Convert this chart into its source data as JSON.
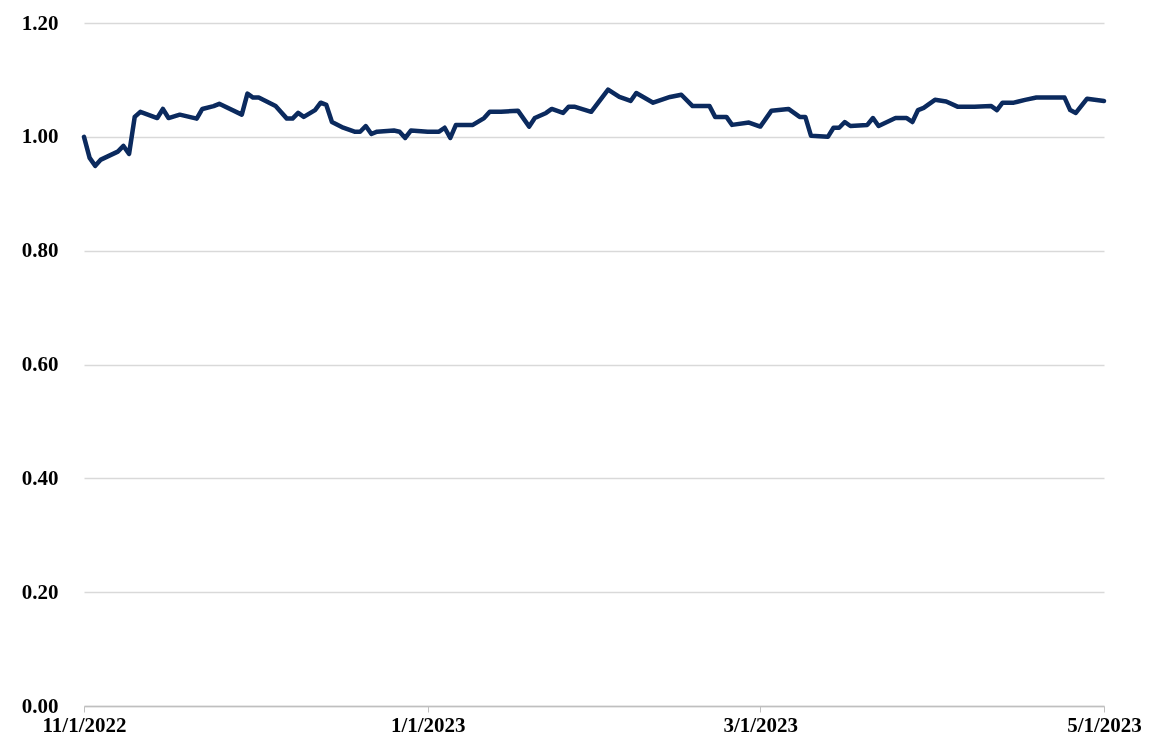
{
  "chart_data": {
    "type": "line",
    "color": "#0b2a5e",
    "grid": "y",
    "marker": "none",
    "line_style": "solid",
    "xlim": [
      "2022-11-01",
      "2023-05-01"
    ],
    "xticks": [
      {
        "value": "2022-11-01",
        "label": "11/1/2022"
      },
      {
        "value": "2023-01-01",
        "label": "1/1/2023"
      },
      {
        "value": "2023-03-01",
        "label": "3/1/2023"
      },
      {
        "value": "2023-05-01",
        "label": "5/1/2023"
      }
    ],
    "ylim": [
      0,
      1.2
    ],
    "yticks": [
      {
        "value": 0,
        "label": "0.00"
      },
      {
        "value": 0.2,
        "label": "0.20"
      },
      {
        "value": 0.4,
        "label": "0.40"
      },
      {
        "value": 0.6,
        "label": "0.60"
      },
      {
        "value": 0.8,
        "label": "0.80"
      },
      {
        "value": 1,
        "label": "1.00"
      },
      {
        "value": 1.2,
        "label": "1.20"
      }
    ],
    "x": [
      "2022-11-01",
      "2022-11-02",
      "2022-11-03",
      "2022-11-04",
      "2022-11-07",
      "2022-11-08",
      "2022-11-09",
      "2022-11-10",
      "2022-11-11",
      "2022-11-14",
      "2022-11-15",
      "2022-11-16",
      "2022-11-18",
      "2022-11-21",
      "2022-11-22",
      "2022-11-24",
      "2022-11-25",
      "2022-11-29",
      "2022-11-30",
      "2022-12-01",
      "2022-12-02",
      "2022-12-05",
      "2022-12-07",
      "2022-12-08",
      "2022-12-09",
      "2022-12-10",
      "2022-12-12",
      "2022-12-13",
      "2022-12-14",
      "2022-12-15",
      "2022-12-17",
      "2022-12-19",
      "2022-12-20",
      "2022-12-21",
      "2022-12-22",
      "2022-12-23",
      "2022-12-26",
      "2022-12-27",
      "2022-12-28",
      "2022-12-29",
      "2023-01-01",
      "2023-01-03",
      "2023-01-04",
      "2023-01-05",
      "2023-01-06",
      "2023-01-09",
      "2023-01-11",
      "2023-01-12",
      "2023-01-14",
      "2023-01-17",
      "2023-01-19",
      "2023-01-20",
      "2023-01-22",
      "2023-01-23",
      "2023-01-25",
      "2023-01-26",
      "2023-01-27",
      "2023-01-30",
      "2023-02-02",
      "2023-02-04",
      "2023-02-06",
      "2023-02-07",
      "2023-02-10",
      "2023-02-13",
      "2023-02-15",
      "2023-02-17",
      "2023-02-20",
      "2023-02-21",
      "2023-02-23",
      "2023-02-24",
      "2023-02-27",
      "2023-03-01",
      "2023-03-03",
      "2023-03-06",
      "2023-03-08",
      "2023-03-09",
      "2023-03-10",
      "2023-03-13",
      "2023-03-14",
      "2023-03-15",
      "2023-03-16",
      "2023-03-17",
      "2023-03-20",
      "2023-03-21",
      "2023-03-22",
      "2023-03-25",
      "2023-03-27",
      "2023-03-28",
      "2023-03-29",
      "2023-03-30",
      "2023-04-01",
      "2023-04-03",
      "2023-04-05",
      "2023-04-08",
      "2023-04-11",
      "2023-04-12",
      "2023-04-13",
      "2023-04-15",
      "2023-04-17",
      "2023-04-19",
      "2023-04-20",
      "2023-04-24",
      "2023-04-25",
      "2023-04-26",
      "2023-04-28",
      "2023-05-01"
    ],
    "values": [
      1.0,
      0.963,
      0.949,
      0.96,
      0.974,
      0.984,
      0.97,
      1.035,
      1.044,
      1.033,
      1.049,
      1.033,
      1.039,
      1.032,
      1.049,
      1.054,
      1.058,
      1.039,
      1.076,
      1.069,
      1.069,
      1.054,
      1.032,
      1.032,
      1.042,
      1.035,
      1.047,
      1.06,
      1.056,
      1.026,
      1.016,
      1.009,
      1.009,
      1.019,
      1.005,
      1.009,
      1.011,
      1.009,
      0.998,
      1.011,
      1.009,
      1.009,
      1.016,
      0.998,
      1.021,
      1.021,
      1.033,
      1.044,
      1.044,
      1.046,
      1.018,
      1.033,
      1.042,
      1.049,
      1.042,
      1.053,
      1.053,
      1.044,
      1.083,
      1.07,
      1.063,
      1.077,
      1.06,
      1.07,
      1.074,
      1.054,
      1.054,
      1.035,
      1.035,
      1.021,
      1.025,
      1.018,
      1.046,
      1.049,
      1.035,
      1.035,
      1.002,
      1.0,
      1.016,
      1.016,
      1.026,
      1.019,
      1.021,
      1.033,
      1.019,
      1.033,
      1.033,
      1.026,
      1.047,
      1.051,
      1.065,
      1.062,
      1.053,
      1.053,
      1.054,
      1.047,
      1.06,
      1.06,
      1.065,
      1.069,
      1.069,
      1.069,
      1.047,
      1.042,
      1.067,
      1.063
    ]
  }
}
